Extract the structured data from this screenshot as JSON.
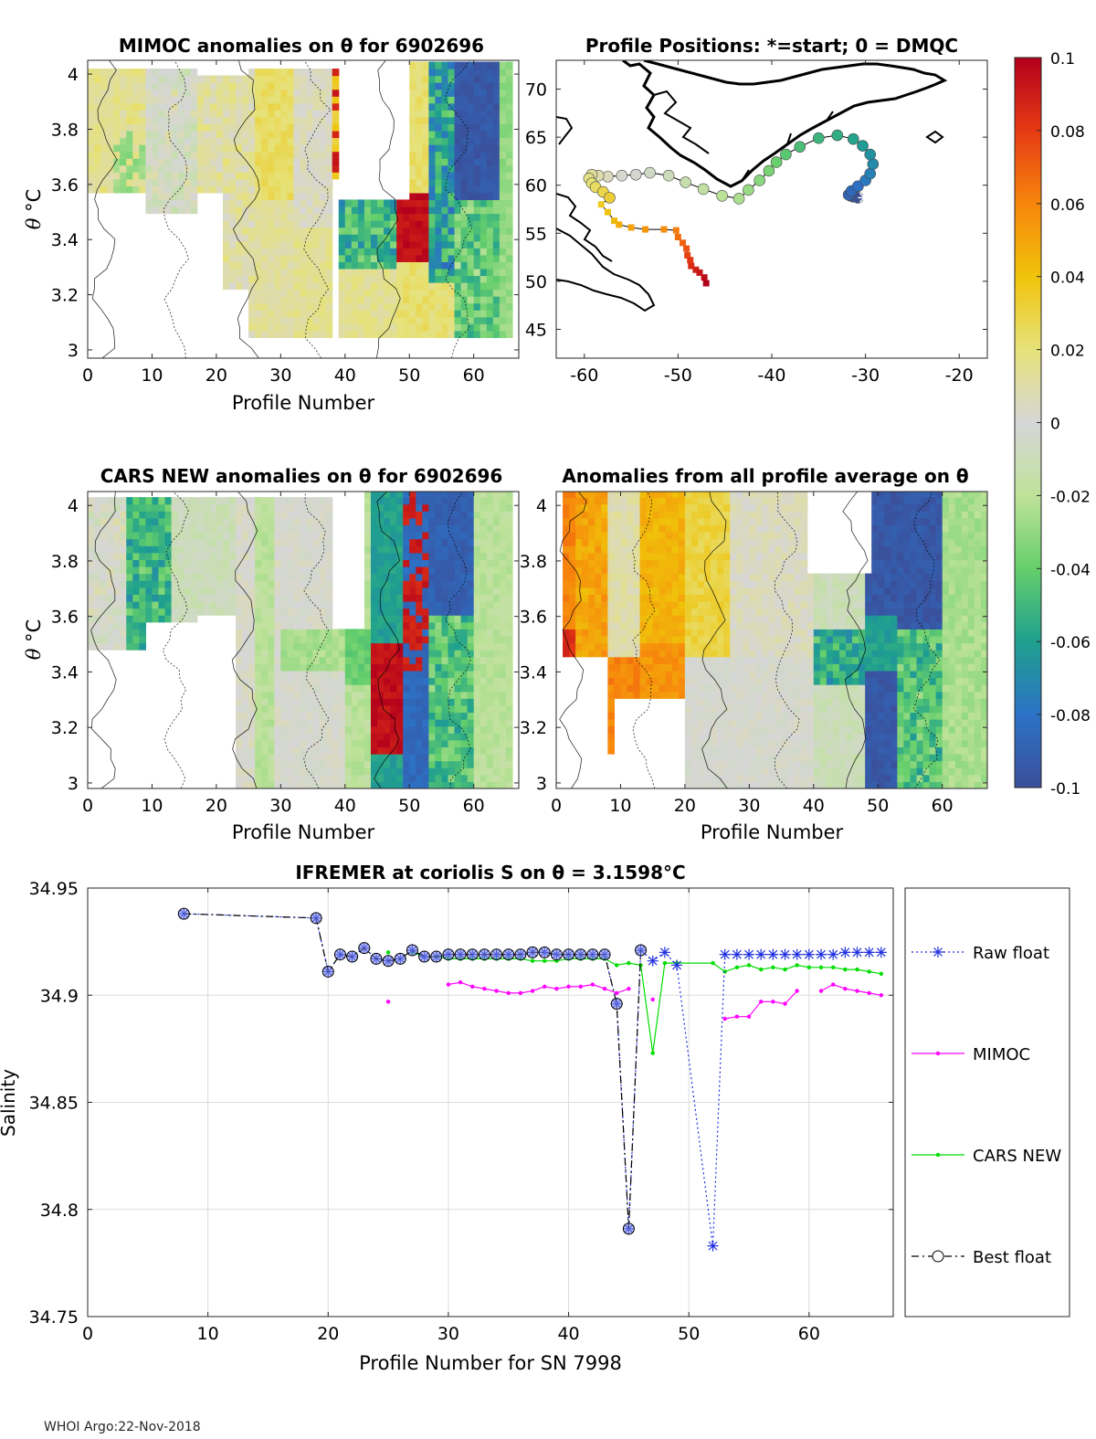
{
  "footer": "WHOI Argo:22-Nov-2018",
  "colors": {
    "raw": "#1f2fe0",
    "mimoc": "#ff00ff",
    "cars": "#00dd00",
    "best": "#000000",
    "best_marker_fill": "#7d8be8",
    "coast": "#000000",
    "grid": "#dcdcdc",
    "nodata": "#ffffff",
    "neutral": "#d6d6d6"
  },
  "chart_data": [
    {
      "id": "mimoc",
      "type": "heatmap",
      "title": "MIMOC anomalies on θ  for 6902696",
      "xlabel": "Profile Number",
      "ylabel": "θ °C",
      "xlim": [
        0,
        67
      ],
      "ylim": [
        2.97,
        4.05
      ],
      "xticks": [
        0,
        10,
        20,
        30,
        40,
        50,
        60
      ],
      "yticks": [
        3,
        3.2,
        3.4,
        3.6,
        3.8,
        4
      ],
      "ytick_labels": [
        "3",
        "3.2",
        "3.4",
        "3.6",
        "3.8",
        "4"
      ]
    },
    {
      "id": "positions",
      "type": "scatter",
      "title": "Profile Positions: *=start; 0 = DMQC",
      "xlim": [
        -63,
        -17
      ],
      "ylim": [
        42,
        73
      ],
      "xticks": [
        -60,
        -50,
        -40,
        -30,
        -20
      ],
      "yticks": [
        45,
        50,
        55,
        60,
        65,
        70
      ],
      "track": [
        [
          -30.8,
          58.7
        ],
        [
          -31.3,
          58.8
        ],
        [
          -31.6,
          58.9
        ],
        [
          -31.8,
          59.0
        ],
        [
          -31.5,
          59.4
        ],
        [
          -30.8,
          59.9
        ],
        [
          -30.0,
          60.5
        ],
        [
          -29.5,
          61.2
        ],
        [
          -29.2,
          62.2
        ],
        [
          -29.5,
          63.2
        ],
        [
          -30.3,
          64.1
        ],
        [
          -31.3,
          64.8
        ],
        [
          -33.0,
          65.2
        ],
        [
          -35.0,
          64.9
        ],
        [
          -37.0,
          64.0
        ],
        [
          -38.5,
          63.2
        ],
        [
          -39.5,
          62.4
        ],
        [
          -40.3,
          61.5
        ],
        [
          -41.3,
          60.5
        ],
        [
          -42.5,
          59.5
        ],
        [
          -43.5,
          58.6
        ],
        [
          -45.3,
          58.9
        ],
        [
          -47.3,
          59.6
        ],
        [
          -49.2,
          60.3
        ],
        [
          -51.0,
          61.0
        ],
        [
          -53.0,
          61.3
        ],
        [
          -54.5,
          61.1
        ],
        [
          -56.0,
          61.0
        ],
        [
          -57.5,
          60.9
        ],
        [
          -58.5,
          61.0
        ],
        [
          -59.2,
          61.1
        ],
        [
          -59.5,
          60.7
        ],
        [
          -59.2,
          60.2
        ],
        [
          -58.8,
          59.8
        ],
        [
          -58.0,
          59.3
        ],
        [
          -57.3,
          58.7
        ],
        [
          -58.2,
          58.0
        ],
        [
          -57.5,
          57.2
        ],
        [
          -56.8,
          56.3
        ],
        [
          -56.3,
          55.9
        ],
        [
          -55.0,
          55.6
        ],
        [
          -53.5,
          55.4
        ],
        [
          -51.5,
          55.4
        ],
        [
          -50.2,
          55.3
        ],
        [
          -50.0,
          54.6
        ],
        [
          -49.5,
          54.0
        ],
        [
          -49.1,
          53.4
        ],
        [
          -49.0,
          52.7
        ],
        [
          -48.7,
          52.2
        ],
        [
          -48.6,
          51.6
        ],
        [
          -48.1,
          51.2
        ],
        [
          -47.7,
          50.9
        ],
        [
          -47.2,
          50.4
        ],
        [
          -47.0,
          49.8
        ]
      ],
      "colorbar": {
        "min": -0.1,
        "max": 0.1,
        "ticks": [
          0.1,
          0.08,
          0.06,
          0.04,
          0.02,
          0,
          -0.02,
          -0.04,
          -0.06,
          -0.08,
          -0.1
        ],
        "tick_labels": [
          "0.1",
          "0.08",
          "0.06",
          "0.04",
          "0.02",
          "0",
          "-0.02",
          "-0.04",
          "-0.06",
          "-0.08",
          "-0.1"
        ]
      }
    },
    {
      "id": "cars",
      "type": "heatmap",
      "title": "CARS NEW anomalies on θ for 6902696",
      "xlabel": "Profile Number",
      "ylabel": "θ °C",
      "xlim": [
        0,
        67
      ],
      "ylim": [
        2.98,
        4.05
      ],
      "xticks": [
        0,
        10,
        20,
        30,
        40,
        50,
        60
      ],
      "yticks": [
        3,
        3.2,
        3.4,
        3.6,
        3.8,
        4
      ],
      "ytick_labels": [
        "3",
        "3.2",
        "3.4",
        "3.6",
        "3.8",
        "4"
      ]
    },
    {
      "id": "allavg",
      "type": "heatmap",
      "title": "Anomalies from all profile average on θ",
      "xlabel": "Profile Number",
      "xlim": [
        0,
        67
      ],
      "ylim": [
        2.98,
        4.05
      ],
      "xticks": [
        0,
        10,
        20,
        30,
        40,
        50,
        60
      ],
      "yticks": [
        3,
        3.2,
        3.4,
        3.6,
        3.8,
        4
      ],
      "ytick_labels": [
        "3",
        "3.2",
        "3.4",
        "3.6",
        "3.8",
        "4"
      ]
    },
    {
      "id": "salinity",
      "type": "line",
      "title": "IFREMER at coriolis S on θ = 3.1598°C",
      "xlabel": "Profile Number for SN 7998",
      "ylabel": "Salinity",
      "xlim": [
        0,
        67
      ],
      "ylim": [
        34.75,
        34.95
      ],
      "xticks": [
        0,
        10,
        20,
        30,
        40,
        50,
        60
      ],
      "yticks": [
        34.75,
        34.8,
        34.85,
        34.9,
        34.95
      ],
      "ytick_labels": [
        "34.75",
        "34.8",
        "34.85",
        "34.9",
        "34.95"
      ],
      "legend_placement": "right-outside",
      "series": [
        {
          "name": "Raw float",
          "key": "raw",
          "style": "dotted",
          "marker": "asterisk",
          "x": [
            8,
            19,
            20,
            21,
            22,
            23,
            24,
            25,
            26,
            27,
            28,
            29,
            30,
            31,
            32,
            33,
            34,
            35,
            36,
            37,
            38,
            39,
            40,
            41,
            42,
            43,
            44,
            45,
            46,
            47,
            48,
            49,
            52,
            53,
            54,
            55,
            56,
            57,
            58,
            59,
            60,
            61,
            62,
            63,
            64,
            65,
            66
          ],
          "y": [
            34.938,
            34.936,
            34.911,
            34.919,
            34.918,
            34.922,
            34.917,
            34.916,
            34.917,
            34.921,
            34.918,
            34.918,
            34.919,
            34.919,
            34.919,
            34.919,
            34.919,
            34.919,
            34.919,
            34.92,
            34.92,
            34.919,
            34.919,
            34.919,
            34.919,
            34.919,
            34.896,
            34.791,
            34.921,
            34.916,
            34.92,
            34.914,
            34.783,
            34.919,
            34.919,
            34.919,
            34.919,
            34.919,
            34.919,
            34.919,
            34.919,
            34.919,
            34.919,
            34.92,
            34.92,
            34.92,
            34.92
          ]
        },
        {
          "name": "MIMOC",
          "key": "mimoc",
          "style": "solid",
          "marker": "dot",
          "segments": [
            {
              "x": [
                25
              ],
              "y": [
                34.897
              ]
            },
            {
              "x": [
                30,
                31,
                32,
                33,
                34,
                35,
                36,
                37,
                38,
                39,
                40,
                41,
                42,
                43,
                44,
                45
              ],
              "y": [
                34.905,
                34.906,
                34.904,
                34.903,
                34.902,
                34.901,
                34.901,
                34.902,
                34.904,
                34.903,
                34.904,
                34.904,
                34.905,
                34.903,
                34.901,
                34.903
              ]
            },
            {
              "x": [
                47
              ],
              "y": [
                34.898
              ]
            },
            {
              "x": [
                53,
                54,
                55,
                56,
                57,
                58,
                59
              ],
              "y": [
                34.889,
                34.89,
                34.89,
                34.897,
                34.897,
                34.896,
                34.902
              ]
            },
            {
              "x": [
                61,
                62,
                63,
                64,
                65,
                66
              ],
              "y": [
                34.902,
                34.905,
                34.903,
                34.902,
                34.901,
                34.9
              ]
            }
          ]
        },
        {
          "name": "CARS NEW",
          "key": "cars",
          "style": "solid",
          "marker": "dot",
          "segments": [
            {
              "x": [
                25
              ],
              "y": [
                34.92
              ]
            },
            {
              "x": [
                27,
                28,
                29,
                30,
                31,
                32,
                33,
                34,
                35,
                36,
                37,
                38,
                39,
                40,
                41,
                42,
                43,
                44,
                45,
                46,
                47,
                48,
                49,
                52,
                53,
                54,
                55,
                56,
                57,
                58,
                59,
                60,
                61,
                62,
                63,
                64,
                65,
                66
              ],
              "y": [
                34.92,
                34.918,
                34.918,
                34.917,
                34.917,
                34.917,
                34.917,
                34.917,
                34.917,
                34.917,
                34.916,
                34.916,
                34.916,
                34.917,
                34.917,
                34.917,
                34.917,
                34.914,
                34.915,
                34.914,
                34.873,
                34.915,
                34.915,
                34.915,
                34.911,
                34.913,
                34.914,
                34.912,
                34.913,
                34.912,
                34.914,
                34.913,
                34.913,
                34.913,
                34.912,
                34.912,
                34.911,
                34.91
              ]
            }
          ]
        },
        {
          "name": "Best float",
          "key": "best",
          "style": "dashdot",
          "marker": "circle",
          "x": [
            8,
            19,
            20,
            21,
            22,
            23,
            24,
            25,
            26,
            27,
            28,
            29,
            30,
            31,
            32,
            33,
            34,
            35,
            36,
            37,
            38,
            39,
            40,
            41,
            42,
            43,
            44,
            45,
            46
          ],
          "y": [
            34.938,
            34.936,
            34.911,
            34.919,
            34.918,
            34.922,
            34.917,
            34.916,
            34.917,
            34.921,
            34.918,
            34.918,
            34.919,
            34.919,
            34.919,
            34.919,
            34.919,
            34.919,
            34.919,
            34.92,
            34.92,
            34.919,
            34.919,
            34.919,
            34.919,
            34.919,
            34.896,
            34.791,
            34.921
          ]
        }
      ]
    }
  ]
}
